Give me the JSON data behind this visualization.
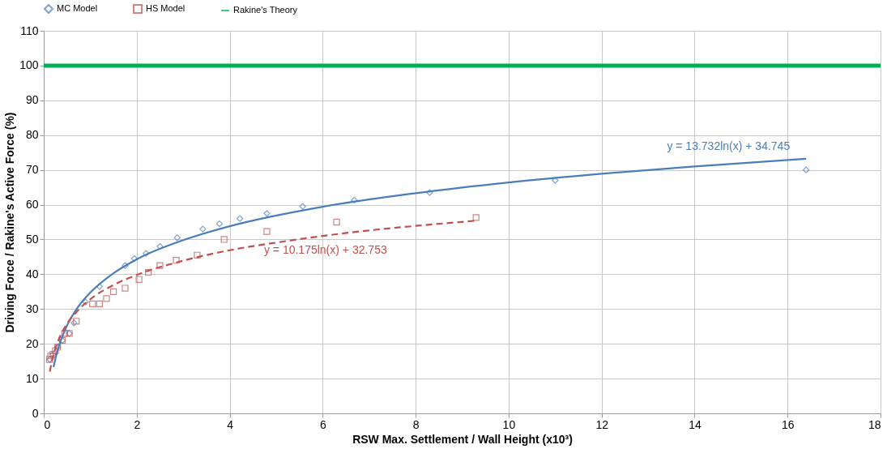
{
  "chart_data": {
    "type": "scatter",
    "xlabel": "RSW Max. Settlement  / Wall Height  (x10³)",
    "ylabel": "Driving Force / Rakine's Active Force  (%)",
    "xlim": [
      0,
      18
    ],
    "xticks": [
      0,
      2,
      4,
      6,
      8,
      10,
      12,
      14,
      16,
      18
    ],
    "ylim": [
      0,
      110
    ],
    "yticks": [
      0,
      10,
      20,
      30,
      40,
      50,
      60,
      70,
      80,
      90,
      100,
      110
    ],
    "grid": true,
    "legend": "top",
    "series": [
      {
        "name": "MC Model",
        "marker": "diamond",
        "color": "#4a7ebb",
        "x": [
          0.13,
          0.2,
          0.3,
          0.4,
          0.55,
          0.65,
          0.9,
          1.2,
          1.75,
          1.95,
          2.2,
          2.5,
          2.87,
          3.42,
          3.78,
          4.22,
          4.8,
          5.57,
          6.68,
          8.3,
          11,
          16.4
        ],
        "values": [
          15.5,
          17,
          19,
          21,
          23,
          26,
          32,
          36.5,
          42.5,
          44.5,
          46,
          48,
          50.5,
          53,
          54.5,
          56,
          57.5,
          59.5,
          61.3,
          63.5,
          67,
          70
        ]
      },
      {
        "name": "HS Model",
        "marker": "square",
        "color": "#c0504d",
        "x": [
          0.12,
          0.15,
          0.2,
          0.25,
          0.3,
          0.4,
          0.45,
          0.55,
          0.7,
          1.05,
          1.2,
          1.35,
          1.5,
          1.75,
          2.05,
          2.25,
          2.5,
          2.85,
          3.3,
          3.88,
          4.8,
          6.3,
          9.3
        ],
        "values": [
          15.5,
          16.5,
          17,
          18,
          19,
          21,
          23,
          23,
          26.5,
          31.5,
          31.5,
          33,
          35,
          36,
          38.5,
          40.5,
          42.5,
          44,
          45.5,
          50,
          52.3,
          55,
          56.3
        ]
      },
      {
        "type": "line",
        "color": "#4a7ebb",
        "line_style": "solid",
        "x": [
          0.21,
          0.3,
          0.5,
          0.75,
          1,
          1.5,
          2,
          3,
          4,
          6,
          8,
          10,
          12,
          14,
          16.4
        ],
        "values": [
          13.3,
          18.2,
          25.2,
          30.8,
          34.7,
          40.3,
          44.3,
          49.8,
          53.8,
          59.4,
          63.3,
          66.4,
          68.9,
          71,
          73.2
        ]
      },
      {
        "type": "line",
        "color": "#c0504d",
        "line_style": "dashed",
        "x": [
          0.13,
          0.2,
          0.3,
          0.5,
          0.75,
          1,
          1.5,
          2,
          3,
          4,
          5,
          6,
          7,
          8,
          9.3
        ],
        "values": [
          12,
          16.4,
          20.5,
          25.7,
          29.8,
          32.8,
          36.9,
          39.8,
          43.9,
          46.9,
          49.1,
          51,
          52.6,
          53.9,
          55.4
        ]
      }
    ],
    "ref_lines": [
      {
        "axis": "y",
        "value": 100,
        "label": "Rakine's Theory",
        "color": "#00b050"
      }
    ],
    "annotations": [
      "y = 13.732ln(x) + 34.745",
      "y = 10.175ln(x) + 32.753"
    ]
  }
}
